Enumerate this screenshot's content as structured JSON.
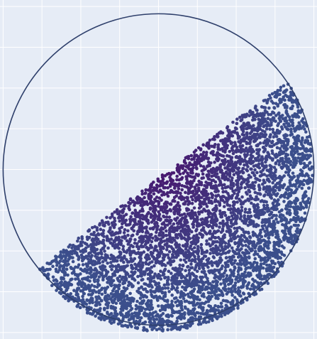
{
  "chart_data": {
    "type": "scatter",
    "title": "",
    "xlabel": "",
    "ylabel": "",
    "grid": true,
    "legend": "none",
    "xlim": [
      -1.02,
      1.02
    ],
    "ylim": [
      -1.04,
      1.04
    ],
    "colors": {
      "background": "#e6ecf6",
      "grid": "#ffffff",
      "circle": "#2e3f6b",
      "point_center": "#4a0f6b",
      "point_edge": "#3b4f8c"
    },
    "circle": {
      "cx": 0,
      "cy": 0,
      "r": 1
    },
    "cut_line": {
      "x1": -0.78,
      "y1": -0.61,
      "x2": 0.84,
      "y2": 0.55,
      "region": "below"
    },
    "n_points": 5200
  }
}
